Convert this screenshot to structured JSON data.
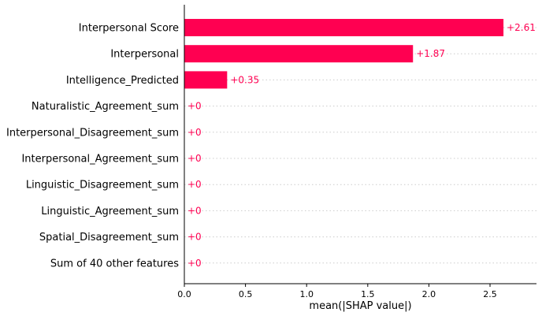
{
  "chart_data": {
    "type": "bar",
    "orientation": "horizontal",
    "categories": [
      "Interpersonal Score",
      "Interpersonal",
      "Intelligence_Predicted",
      "Naturalistic_Agreement_sum",
      "Interpersonal_Disagreement_sum",
      "Interpersonal_Agreement_sum",
      "Linguistic_Disagreement_sum",
      "Linguistic_Agreement_sum",
      "Spatial_Disagreement_sum",
      "Sum of 40 other features"
    ],
    "values": [
      2.61,
      1.87,
      0.35,
      0,
      0,
      0,
      0,
      0,
      0,
      0
    ],
    "value_labels": [
      "+2.61",
      "+1.87",
      "+0.35",
      "+0",
      "+0",
      "+0",
      "+0",
      "+0",
      "+0",
      "+0"
    ],
    "xlabel": "mean(|SHAP value|)",
    "ylabel": "",
    "xlim": [
      0,
      2.88
    ],
    "xticks": [
      "0.0",
      "0.5",
      "1.0",
      "1.5",
      "2.0",
      "2.5"
    ],
    "grid": "horizontal dotted guide lines",
    "colors": {
      "bar": "#ff0051",
      "label": "#ff0051",
      "grid": "#cccccc",
      "axis": "#000000"
    }
  }
}
